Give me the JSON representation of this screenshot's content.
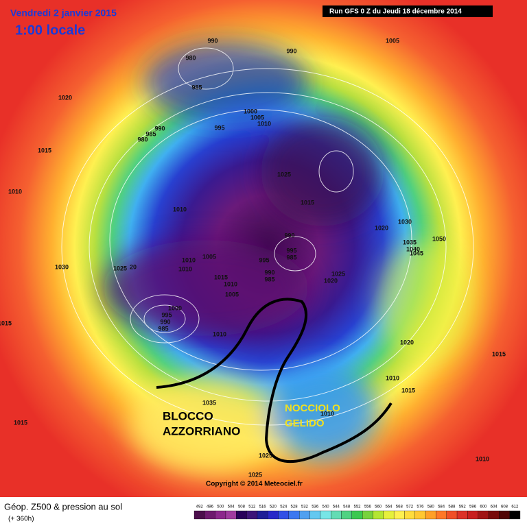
{
  "header": {
    "date": "Vendredi 2 janvier 2015",
    "time": "1:00 locale",
    "run": "Run GFS 0 Z du Jeudi 18 décembre 2014"
  },
  "map": {
    "isobar_labels": [
      "990",
      "990",
      "1005",
      "980",
      "985",
      "1020",
      "1000",
      "1005",
      "1010",
      "995",
      "990",
      "985",
      "980",
      "1015",
      "1025",
      "1010",
      "1015",
      "1010",
      "1020",
      "1030",
      "990",
      "1035",
      "1050",
      "1040",
      "995",
      "985",
      "1045",
      "1005",
      "1010",
      "995",
      "1025",
      "20",
      "1030",
      "1010",
      "990",
      "985",
      "1025",
      "1020",
      "1015",
      "1010",
      "1005",
      "1000",
      "995",
      "990",
      "985",
      "1010",
      "1015",
      "1020",
      "1015",
      "1010",
      "1015",
      "1035",
      "1015",
      "1010",
      "1025",
      "1025",
      "1010"
    ],
    "annotations": [
      "BLOCCO",
      "AZZORRIANO",
      "NOCCIOLO",
      "GELIDO"
    ],
    "copyright": "Copyright © 2014 Meteociel.fr"
  },
  "legend": {
    "title": "Géop. Z500 & pression au sol",
    "subtitle": "(+ 360h)",
    "values": [
      492,
      496,
      500,
      504,
      508,
      512,
      516,
      520,
      524,
      528,
      532,
      536,
      540,
      544,
      548,
      552,
      556,
      560,
      564,
      568,
      572,
      576,
      580,
      584,
      588,
      592,
      596,
      600,
      604,
      608,
      612
    ],
    "colors": [
      "#4b0f4b",
      "#6e1a6e",
      "#8c288c",
      "#a03ca0",
      "#28005a",
      "#3c1478",
      "#1e1e96",
      "#2828c8",
      "#3250e6",
      "#3c78f0",
      "#50a0f0",
      "#64c8f0",
      "#78e6e6",
      "#64dcb4",
      "#50d282",
      "#3cc850",
      "#78d23c",
      "#b4e632",
      "#e6f03c",
      "#fff050",
      "#ffdc3c",
      "#ffc832",
      "#ffa028",
      "#ff7828",
      "#f05028",
      "#dc3228",
      "#c81e1e",
      "#a01414",
      "#780a0a",
      "#500505",
      "#000000"
    ]
  }
}
